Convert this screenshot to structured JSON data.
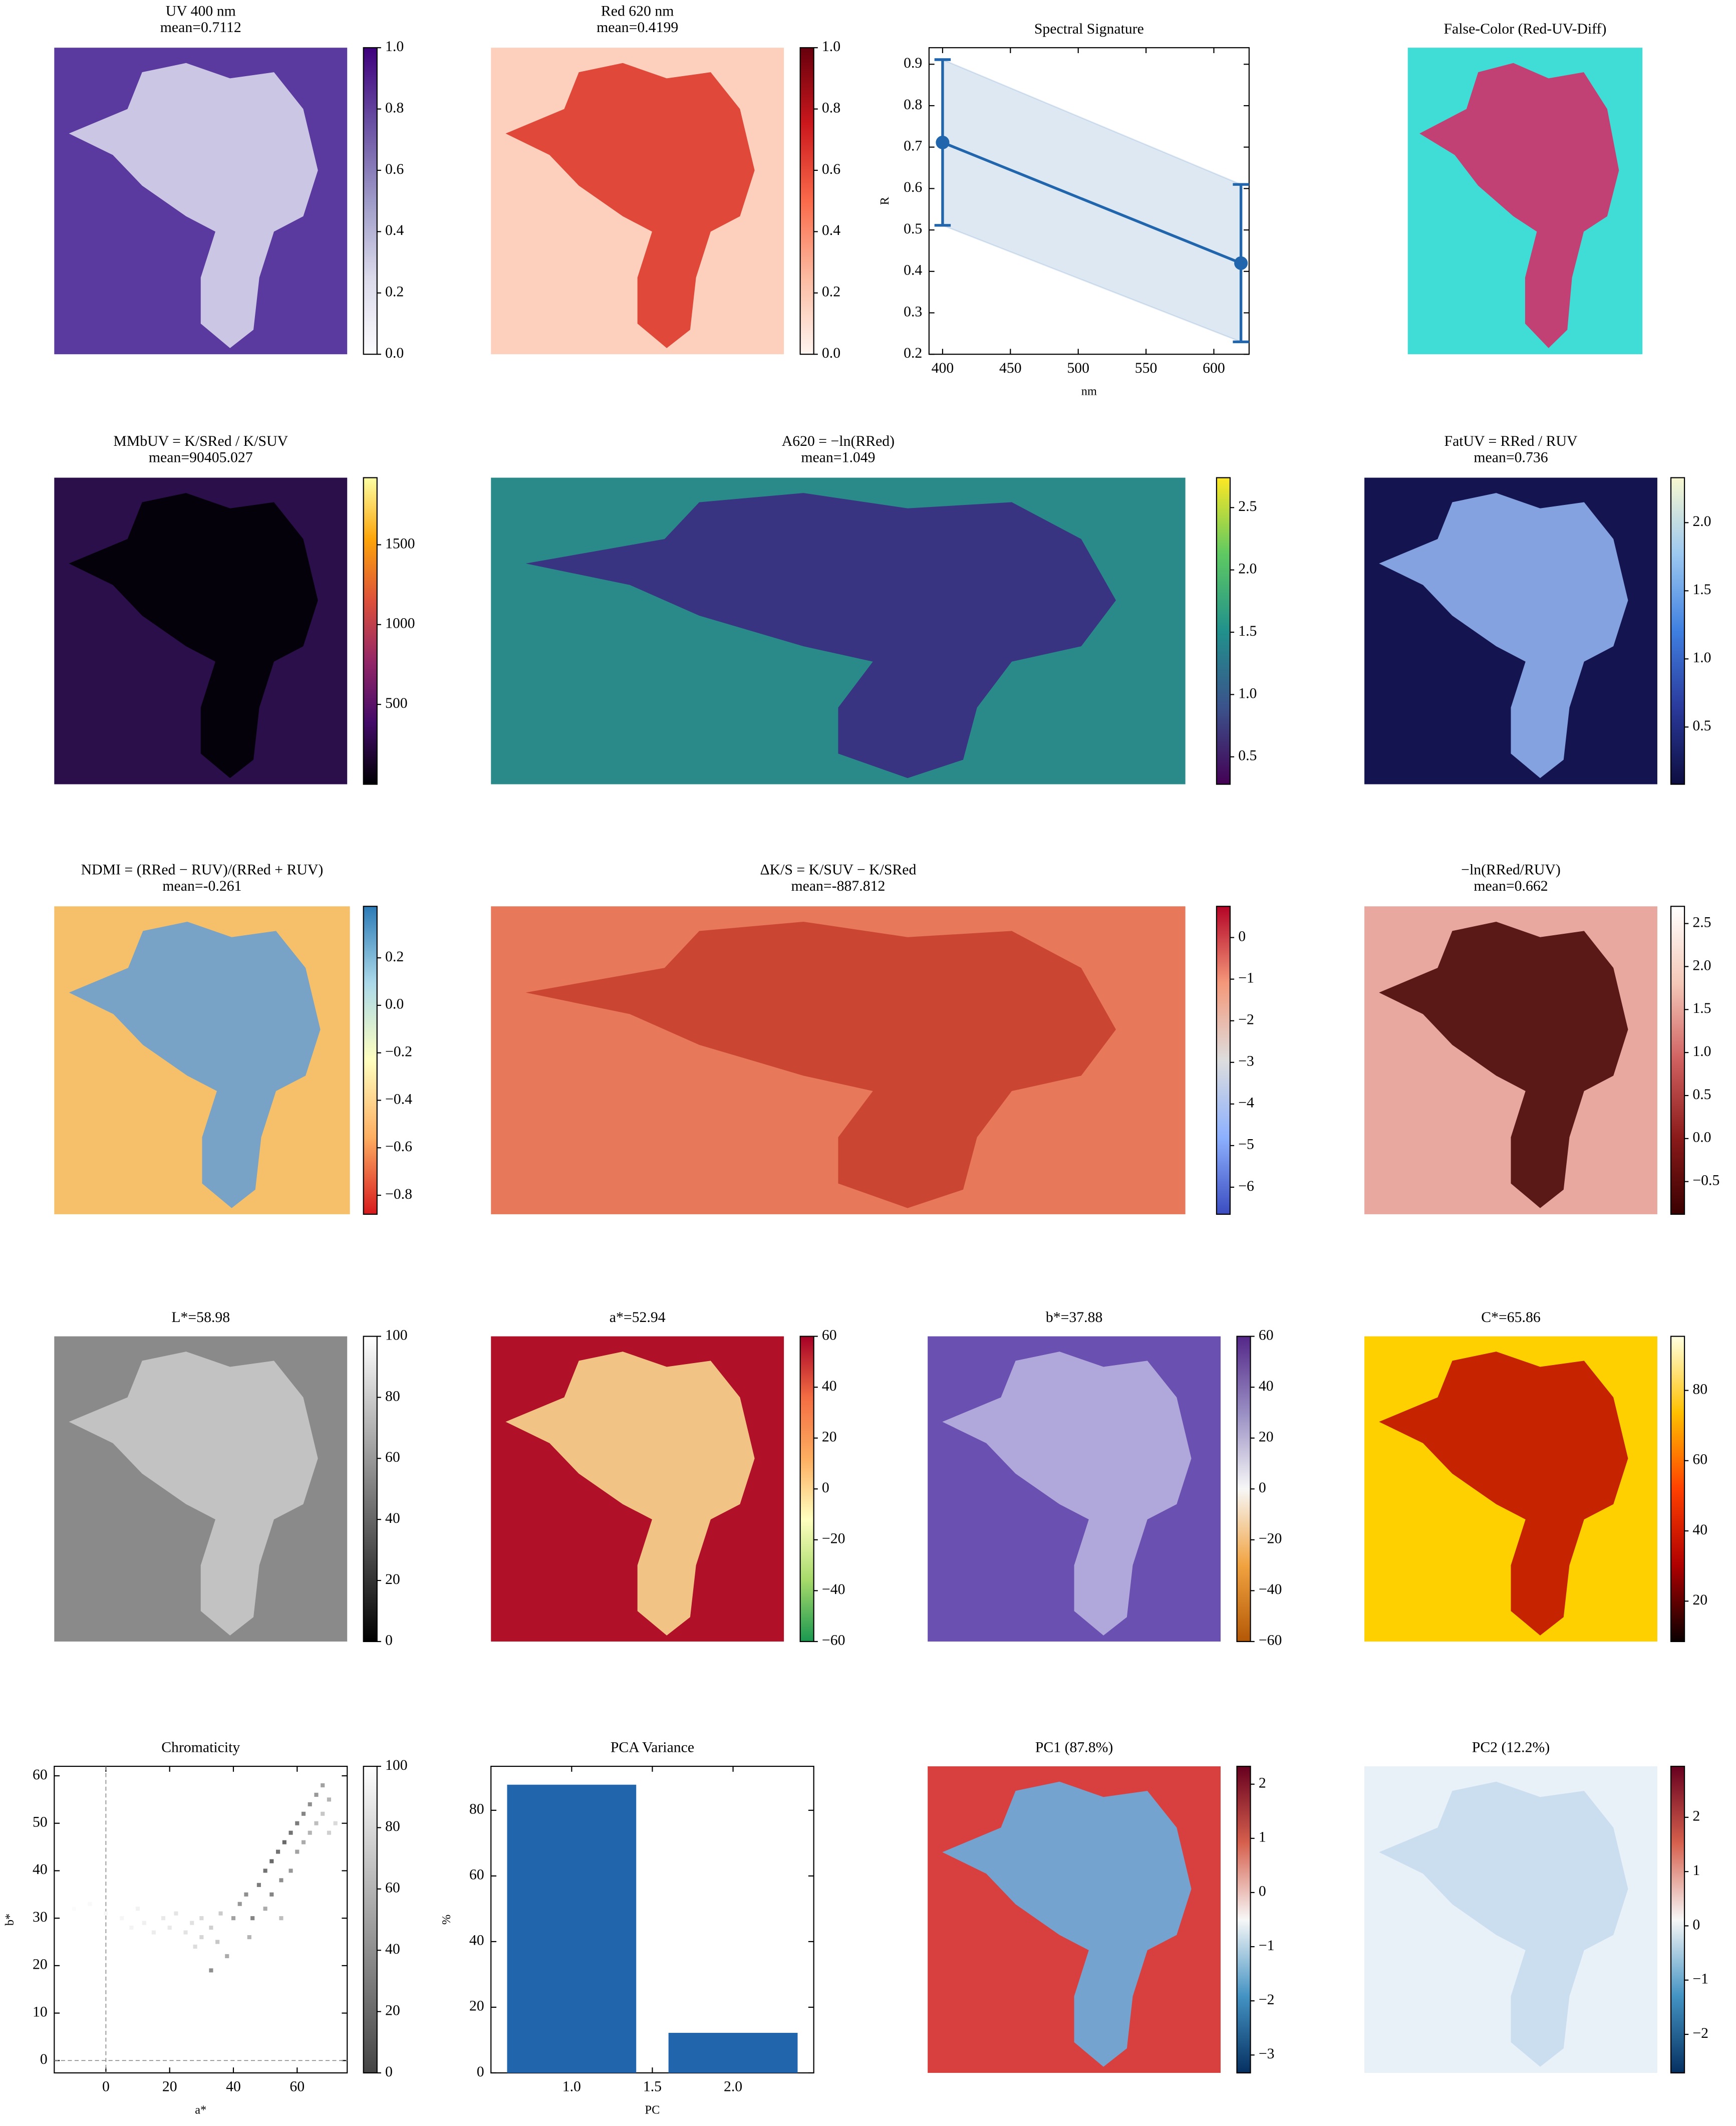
{
  "chart_data": [
    {
      "type": "heatmap",
      "title": "UV 400 nm",
      "subtitle": "mean=0.7112",
      "clim": [
        0,
        1
      ],
      "cbar_ticks": [
        {
          "value": 0,
          "label": "0.0"
        },
        0.2,
        0.4,
        0.6,
        0.8,
        {
          "value": 1,
          "label": "1.0"
        }
      ],
      "colormap": [
        "#fcfbfd",
        "#dadaeb",
        "#9e9ac8",
        "#6a51a3",
        "#3f007d"
      ],
      "image_colors": [
        "#5a3a9e",
        "#d8d6ec"
      ]
    },
    {
      "type": "heatmap",
      "title": "Red 620 nm",
      "subtitle": "mean=0.4199",
      "clim": [
        0,
        1
      ],
      "cbar_ticks": [
        {
          "value": 0,
          "label": "0.0"
        },
        0.2,
        0.4,
        0.6,
        0.8,
        {
          "value": 1,
          "label": "1.0"
        }
      ],
      "colormap": [
        "#fff5f0",
        "#fcbba1",
        "#fb6a4a",
        "#cb181d",
        "#67000d"
      ],
      "image_colors": [
        "#fcd0bd",
        "#dd3a2a"
      ]
    },
    {
      "type": "line",
      "title": "Spectral Signature",
      "x_label": "nm",
      "y_label": "R",
      "xlim": [
        390,
        626
      ],
      "ylim": [
        0.2,
        0.94
      ],
      "xticks": [
        400,
        450,
        500,
        550,
        600
      ],
      "yticks": [
        0.2,
        0.3,
        0.4,
        0.5,
        0.6,
        0.7,
        0.8,
        0.9
      ],
      "x": [
        400,
        620
      ],
      "series": [
        {
          "color": "#2166ac",
          "values": [
            0.7112,
            0.4199
          ],
          "errors": [
            0.2,
            0.19
          ]
        }
      ]
    },
    {
      "type": "heatmap",
      "title": "False-Color (Red-UV-Diff)",
      "image_colors": [
        "#40dcd6",
        "#d0306a"
      ]
    },
    {
      "type": "heatmap",
      "title": "MMbUV = K/SRed / K/SUV",
      "subtitle": "mean=90405.027",
      "clim": [
        0,
        1920
      ],
      "cbar_ticks": [
        500,
        1000,
        1500
      ],
      "colormap": [
        "#000004",
        "#420a68",
        "#932667",
        "#dd513a",
        "#fca50a",
        "#fcffa4"
      ],
      "image_colors": [
        "#2a0f4a",
        "#000004"
      ]
    },
    {
      "type": "heatmap",
      "title": "A620 = −ln(RRed)",
      "subtitle": "mean=1.049",
      "clim": [
        0.28,
        2.74
      ],
      "cbar_ticks": [
        0.5,
        {
          "value": 1,
          "label": "1.0"
        },
        1.5,
        {
          "value": 2,
          "label": "2.0"
        },
        2.5
      ],
      "colormap": [
        "#440154",
        "#3b528b",
        "#21918c",
        "#5ec962",
        "#fde725"
      ],
      "image_colors": [
        "#2a8a8a",
        "#3b2a80"
      ]
    },
    {
      "type": "heatmap",
      "title": "FatUV = RRed / RUV",
      "subtitle": "mean=0.736",
      "clim": [
        0.08,
        2.33
      ],
      "cbar_ticks": [
        0.5,
        {
          "value": 1,
          "label": "1.0"
        },
        1.5,
        {
          "value": 2,
          "label": "2.0"
        }
      ],
      "colormap": [
        "#0d0d3f",
        "#2a3a9c",
        "#3f7fe0",
        "#9cc8f0",
        "#f8f8d0"
      ],
      "image_colors": [
        "#141450",
        "#90b0f0"
      ]
    },
    {
      "type": "heatmap",
      "title": "NDMI = (RRed − RUV)/(RRed + RUV)",
      "subtitle": "mean=-0.261",
      "clim": [
        -0.88,
        0.417
      ],
      "cbar_ticks": [
        {
          "value": -0.8,
          "label": "−0.8"
        },
        {
          "value": -0.6,
          "label": "−0.6"
        },
        {
          "value": -0.4,
          "label": "−0.4"
        },
        {
          "value": -0.2,
          "label": "−0.2"
        },
        {
          "value": 0,
          "label": "0.0"
        },
        0.2
      ],
      "colormap": [
        "#d7191c",
        "#fdae61",
        "#ffffbf",
        "#abd9e9",
        "#2c7bb6"
      ],
      "image_colors": [
        "#f6c06a",
        "#6aa0d0"
      ]
    },
    {
      "type": "heatmap",
      "title": "ΔK/S = K/SUV − K/SRed",
      "subtitle": "mean=-887.812",
      "clim": [
        -6.65,
        0.75
      ],
      "cbar_ticks": [
        {
          "value": -6,
          "label": "−6"
        },
        {
          "value": -5,
          "label": "−5"
        },
        {
          "value": -4,
          "label": "−4"
        },
        {
          "value": -3,
          "label": "−3"
        },
        {
          "value": -2,
          "label": "−2"
        },
        {
          "value": -1,
          "label": "−1"
        },
        0
      ],
      "colormap": [
        "#3b4cc0",
        "#8db0fe",
        "#dddddd",
        "#f4987a",
        "#b40426"
      ],
      "image_colors": [
        "#e8785a",
        "#c8402e"
      ]
    },
    {
      "type": "heatmap",
      "title": "−ln(RRed/RUV)",
      "subtitle": "mean=0.662",
      "clim": [
        -0.88,
        2.7
      ],
      "cbar_ticks": [
        {
          "value": -0.5,
          "label": "−0.5"
        },
        {
          "value": 0,
          "label": "0.0"
        },
        0.5,
        {
          "value": 1,
          "label": "1.0"
        },
        1.5,
        {
          "value": 2,
          "label": "2.0"
        },
        2.5
      ],
      "colormap": [
        "#3a0000",
        "#8b1a1a",
        "#d06060",
        "#f4c8b8",
        "#ffffff"
      ],
      "image_colors": [
        "#e8a8a0",
        "#4a0808"
      ]
    },
    {
      "type": "heatmap",
      "title": "L*=58.98",
      "clim": [
        0,
        100
      ],
      "cbar_ticks": [
        0,
        20,
        40,
        60,
        80,
        100
      ],
      "colormap": [
        "#000000",
        "#ffffff"
      ],
      "image_colors": [
        "#8a8a8a",
        "#c8c8c8"
      ]
    },
    {
      "type": "heatmap",
      "title": "a*=52.94",
      "clim": [
        -60,
        60
      ],
      "cbar_ticks": [
        {
          "value": -60,
          "label": "−60"
        },
        {
          "value": -40,
          "label": "−40"
        },
        {
          "value": -20,
          "label": "−20"
        },
        0,
        20,
        40,
        60
      ],
      "colormap": [
        "#1a9850",
        "#a6d96a",
        "#ffffbf",
        "#fdae61",
        "#f46d43",
        "#a50026"
      ],
      "image_colors": [
        "#b01028",
        "#f8d890"
      ]
    },
    {
      "type": "heatmap",
      "title": "b*=37.88",
      "clim": [
        -60,
        60
      ],
      "cbar_ticks": [
        {
          "value": -60,
          "label": "−60"
        },
        {
          "value": -40,
          "label": "−40"
        },
        {
          "value": -20,
          "label": "−20"
        },
        0,
        20,
        40,
        60
      ],
      "colormap": [
        "#b35806",
        "#f1a340",
        "#f7f7f7",
        "#998ec3",
        "#542788"
      ],
      "image_colors": [
        "#6a50b0",
        "#b8b0e0"
      ]
    },
    {
      "type": "heatmap",
      "title": "C*=65.86",
      "clim": [
        8.5,
        95.4
      ],
      "cbar_ticks": [
        20,
        40,
        60,
        80
      ],
      "colormap": [
        "#0a0000",
        "#b00000",
        "#ff4000",
        "#ffc000",
        "#ffffe0"
      ],
      "image_colors": [
        "#ffd000",
        "#c01000"
      ]
    },
    {
      "type": "scatter",
      "title": "Chromaticity",
      "x_label": "a*",
      "y_label": "b*",
      "xlim": [
        -16.2,
        75.7
      ],
      "ylim": [
        -2.6,
        62
      ],
      "xticks": [
        0,
        20,
        40,
        60
      ],
      "yticks": [
        0,
        10,
        20,
        30,
        40,
        50,
        60
      ],
      "clim": [
        0,
        100
      ],
      "cbar_ticks": [
        0,
        20,
        40,
        60,
        80,
        100
      ],
      "colormap": [
        "#444444",
        "#ffffff"
      ],
      "x": [
        -10,
        -5,
        0,
        5,
        8,
        10,
        12,
        15,
        18,
        20,
        22,
        25,
        27,
        28,
        30,
        30,
        33,
        35,
        36,
        33,
        38,
        40,
        42,
        44,
        46,
        48,
        50,
        52,
        52,
        54,
        55,
        56,
        58,
        58,
        60,
        60,
        62,
        62,
        64,
        64,
        66,
        66,
        68,
        68,
        70,
        70,
        72,
        50,
        45,
        55
      ],
      "y": [
        32,
        33,
        31,
        30,
        28,
        32,
        29,
        27,
        30,
        28,
        31,
        27,
        29,
        24,
        30,
        26,
        28,
        25,
        31,
        19,
        22,
        30,
        33,
        35,
        30,
        37,
        40,
        35,
        42,
        44,
        38,
        46,
        40,
        48,
        50,
        44,
        52,
        46,
        54,
        48,
        56,
        50,
        58,
        52,
        55,
        48,
        50,
        32,
        26,
        30
      ],
      "c": [
        98,
        97,
        96,
        95,
        94,
        93,
        92,
        90,
        88,
        88,
        86,
        85,
        84,
        82,
        80,
        78,
        75,
        70,
        72,
        40,
        55,
        50,
        45,
        40,
        35,
        30,
        25,
        35,
        20,
        25,
        40,
        20,
        45,
        25,
        30,
        50,
        35,
        55,
        40,
        60,
        45,
        65,
        50,
        70,
        60,
        75,
        80,
        55,
        60,
        65
      ]
    },
    {
      "type": "bar",
      "title": "PCA Variance",
      "x_label": "PC",
      "y_label": "%",
      "x": [
        1,
        2
      ],
      "values": [
        87.8,
        12.2
      ],
      "color": "#2166ac",
      "xlim": [
        0.5,
        2.5
      ],
      "ylim": [
        0,
        93.4
      ],
      "xticks": [
        {
          "value": 1,
          "label": "1.0"
        },
        1.5,
        {
          "value": 2,
          "label": "2.0"
        }
      ],
      "yticks": [
        0,
        20,
        40,
        60,
        80
      ]
    },
    {
      "type": "heatmap",
      "title": "PC1 (87.8%)",
      "clim": [
        -3.33,
        2.33
      ],
      "cbar_ticks": [
        {
          "value": -3,
          "label": "−3"
        },
        {
          "value": -2,
          "label": "−2"
        },
        {
          "value": -1,
          "label": "−1"
        },
        0,
        1,
        2
      ],
      "colormap": [
        "#053061",
        "#4393c3",
        "#f7f7f7",
        "#d6604d",
        "#67001f"
      ],
      "image_colors": [
        "#d84040",
        "#6aaee0"
      ]
    },
    {
      "type": "heatmap",
      "title": "PC2 (12.2%)",
      "clim": [
        -2.71,
        2.94
      ],
      "cbar_ticks": [
        {
          "value": -2,
          "label": "−2"
        },
        {
          "value": -1,
          "label": "−1"
        },
        0,
        1,
        2
      ],
      "colormap": [
        "#053061",
        "#4393c3",
        "#f7f7f7",
        "#d6604d",
        "#67001f"
      ],
      "image_colors": [
        "#e8f0f8",
        "#c8dcee"
      ]
    }
  ]
}
